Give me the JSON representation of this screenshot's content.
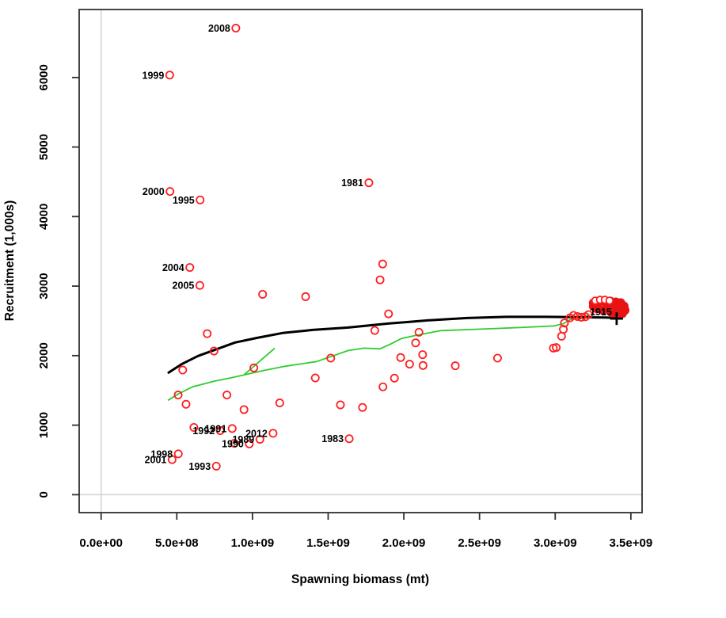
{
  "chart_data": {
    "type": "scatter",
    "title": "",
    "xlabel": "Spawning biomass (mt)",
    "ylabel": "Recruitment (1,000s)",
    "xlim": [
      -145000000,
      3574000000
    ],
    "ylim": [
      -258,
      6978
    ],
    "grid": false,
    "x_ticks": {
      "values": [
        0,
        500000000,
        1000000000,
        1500000000,
        2000000000,
        2500000000,
        3000000000,
        3500000000
      ],
      "labels": [
        "0.0e+00",
        "5.0e+08",
        "1.0e+09",
        "1.5e+09",
        "2.0e+09",
        "2.5e+09",
        "3.0e+09",
        "3.5e+09"
      ]
    },
    "y_ticks": {
      "values": [
        0,
        1000,
        2000,
        3000,
        4000,
        5000,
        6000
      ],
      "labels": [
        "0",
        "1000",
        "2000",
        "3000",
        "4000",
        "5000",
        "6000"
      ]
    },
    "reference_lines": {
      "vertical_x": 0,
      "horizontal_y": 0,
      "color": "#d4d4d4"
    },
    "colors": {
      "points": "#ff1f1f",
      "filled_cluster": "#e81414",
      "sr_curve": "#000000",
      "expected_line": "#2fcc2f",
      "box": "#303030"
    },
    "series": {
      "observed_points": {
        "marker": "open-circle",
        "points": [
          {
            "x": 890000000.0,
            "y": 6710,
            "label": "2008"
          },
          {
            "x": 453000000.0,
            "y": 6035,
            "label": "1999"
          },
          {
            "x": 455000000.0,
            "y": 4361,
            "label": "2000"
          },
          {
            "x": 654000000.0,
            "y": 4239,
            "label": "1995"
          },
          {
            "x": 586000000.0,
            "y": 3268,
            "label": "2004"
          },
          {
            "x": 652000000.0,
            "y": 3010,
            "label": "2005"
          },
          {
            "x": 1769000000.0,
            "y": 4486,
            "label": "1981"
          },
          {
            "x": 1067000000.0,
            "y": 2882
          },
          {
            "x": 1351000000.0,
            "y": 2848
          },
          {
            "x": 1860000000.0,
            "y": 3318
          },
          {
            "x": 1843000000.0,
            "y": 3090
          },
          {
            "x": 1899000000.0,
            "y": 2601
          },
          {
            "x": 1808000000.0,
            "y": 2362
          },
          {
            "x": 2100000000.0,
            "y": 2336
          },
          {
            "x": 2078000000.0,
            "y": 2184
          },
          {
            "x": 1979000000.0,
            "y": 1972
          },
          {
            "x": 2038000000.0,
            "y": 1877
          },
          {
            "x": 2124000000.0,
            "y": 2014
          },
          {
            "x": 2127000000.0,
            "y": 1858
          },
          {
            "x": 2619000000.0,
            "y": 1964
          },
          {
            "x": 2340000000.0,
            "y": 1854
          },
          {
            "x": 2988000000.0,
            "y": 2108
          },
          {
            "x": 1938000000.0,
            "y": 1676
          },
          {
            "x": 1862000000.0,
            "y": 1551
          },
          {
            "x": 1727000000.0,
            "y": 1255
          },
          {
            "x": 701000000.0,
            "y": 2316
          },
          {
            "x": 746000000.0,
            "y": 2066
          },
          {
            "x": 539000000.0,
            "y": 1793
          },
          {
            "x": 509000000.0,
            "y": 1434
          },
          {
            "x": 561000000.0,
            "y": 1300
          },
          {
            "x": 831000000.0,
            "y": 1434
          },
          {
            "x": 944000000.0,
            "y": 1224
          },
          {
            "x": 1009000000.0,
            "y": 1824
          },
          {
            "x": 1180000000.0,
            "y": 1320
          },
          {
            "x": 1415000000.0,
            "y": 1679
          },
          {
            "x": 1517000000.0,
            "y": 1964
          },
          {
            "x": 1581000000.0,
            "y": 1292
          },
          {
            "x": 613000000.0,
            "y": 967
          },
          {
            "x": 787000000.0,
            "y": 921,
            "label": "1992"
          },
          {
            "x": 866000000.0,
            "y": 951,
            "label": "1991"
          },
          {
            "x": 880000000.0,
            "y": 739
          },
          {
            "x": 979000000.0,
            "y": 731,
            "label": "1990"
          },
          {
            "x": 1049000000.0,
            "y": 796,
            "label": "1989"
          },
          {
            "x": 1136000000.0,
            "y": 883,
            "label": "2012"
          },
          {
            "x": 1639000000.0,
            "y": 805,
            "label": "1983"
          },
          {
            "x": 510000000.0,
            "y": 587,
            "label": "1998"
          },
          {
            "x": 469000000.0,
            "y": 504,
            "label": "2001"
          },
          {
            "x": 761000000.0,
            "y": 410,
            "label": "1993"
          },
          {
            "x": 3007000000.0,
            "y": 2116
          },
          {
            "x": 3042000000.0,
            "y": 2279
          },
          {
            "x": 3054000000.0,
            "y": 2378
          },
          {
            "x": 3061000000.0,
            "y": 2469
          },
          {
            "x": 3098000000.0,
            "y": 2544
          },
          {
            "x": 3121000000.0,
            "y": 2578
          },
          {
            "x": 3147000000.0,
            "y": 2563
          },
          {
            "x": 3173000000.0,
            "y": 2552
          },
          {
            "x": 3199000000.0,
            "y": 2560
          },
          {
            "x": 3220000000.0,
            "y": 2590
          }
        ]
      },
      "recent_filled_cluster": {
        "marker": "filled-circle",
        "points": [
          {
            "x": 3254000000.0,
            "y": 2757
          },
          {
            "x": 3291000000.0,
            "y": 2780
          },
          {
            "x": 3327000000.0,
            "y": 2780
          },
          {
            "x": 3364000000.0,
            "y": 2780
          },
          {
            "x": 3401000000.0,
            "y": 2768
          },
          {
            "x": 3432000000.0,
            "y": 2757
          },
          {
            "x": 3453000000.0,
            "y": 2711
          },
          {
            "x": 3459000000.0,
            "y": 2654
          },
          {
            "x": 3443000000.0,
            "y": 2609
          },
          {
            "x": 3412000000.0,
            "y": 2597
          },
          {
            "x": 3375000000.0,
            "y": 2620
          },
          {
            "x": 3317000000.0,
            "y": 2654
          },
          {
            "x": 3276000000.0,
            "y": 2677
          },
          {
            "x": 3254000000.0,
            "y": 2711
          },
          {
            "x": 3350000000.0,
            "y": 2700
          },
          {
            "x": 3400000000.0,
            "y": 2660
          }
        ]
      },
      "cluster_open_rings": {
        "marker": "open-circle-white-fill",
        "points": [
          {
            "x": 3265000000.0,
            "y": 2791
          },
          {
            "x": 3296000000.0,
            "y": 2803
          },
          {
            "x": 3328000000.0,
            "y": 2803
          },
          {
            "x": 3359000000.0,
            "y": 2791
          }
        ]
      },
      "stock_recruit_curve": {
        "points": [
          [
            446000000.0,
            1756
          ],
          [
            535000000.0,
            1881
          ],
          [
            640000000.0,
            1995
          ],
          [
            755000000.0,
            2086
          ],
          [
            885000000.0,
            2188
          ],
          [
            1032000000.0,
            2256
          ],
          [
            1199000000.0,
            2325
          ],
          [
            1398000000.0,
            2370
          ],
          [
            1633000000.0,
            2404
          ],
          [
            1895000000.0,
            2461
          ],
          [
            2156000000.0,
            2507
          ],
          [
            2418000000.0,
            2541
          ],
          [
            2679000000.0,
            2558
          ],
          [
            2941000000.0,
            2558
          ],
          [
            3176000000.0,
            2552
          ],
          [
            3333000000.0,
            2547
          ],
          [
            3406000000.0,
            2541
          ]
        ],
        "end_marker": {
          "symbol": "+",
          "x": 3406000000.0,
          "y": 2532,
          "label": "1915"
        }
      },
      "expected_recruitment_line": {
        "points": [
          [
            441000000.0,
            1357
          ],
          [
            509000000.0,
            1448
          ],
          [
            603000000.0,
            1551
          ],
          [
            744000000.0,
            1630
          ],
          [
            849000000.0,
            1676
          ],
          [
            943000000.0,
            1721
          ],
          [
            1058000000.0,
            1778
          ],
          [
            1215000000.0,
            1847
          ],
          [
            1424000000.0,
            1915
          ],
          [
            1633000000.0,
            2074
          ],
          [
            1738000000.0,
            2108
          ],
          [
            1842000000.0,
            2097
          ],
          [
            1910000000.0,
            2165
          ],
          [
            1984000000.0,
            2245
          ],
          [
            2078000000.0,
            2290
          ],
          [
            2245000000.0,
            2359
          ],
          [
            2507000000.0,
            2381
          ],
          [
            2768000000.0,
            2404
          ],
          [
            2993000000.0,
            2427
          ],
          [
            3056000000.0,
            2461
          ],
          [
            3098000000.0,
            2518
          ],
          [
            3171000000.0,
            2552
          ],
          [
            3229000000.0,
            2586
          ]
        ],
        "branch": [
          [
            943000000.0,
            1721
          ],
          [
            1147000000.0,
            2108
          ]
        ]
      }
    }
  }
}
